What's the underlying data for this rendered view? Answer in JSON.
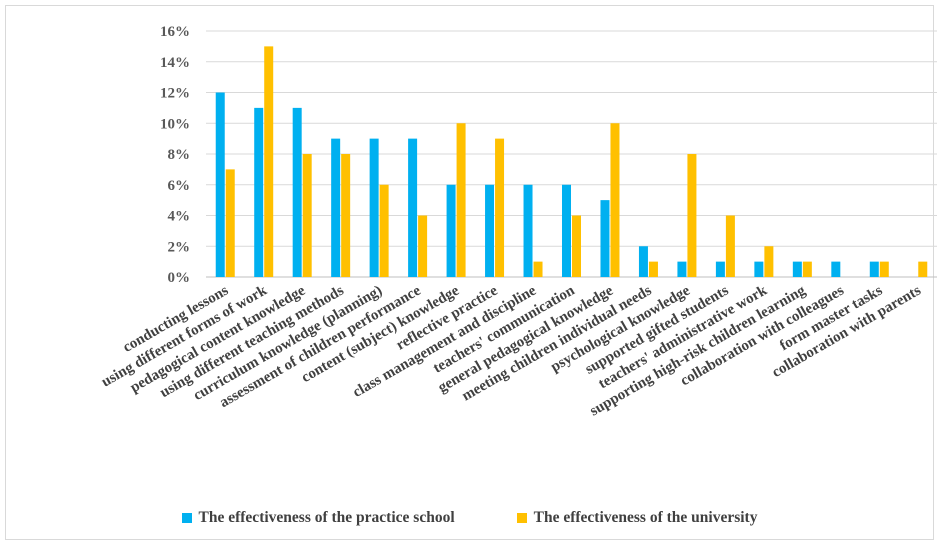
{
  "chart_data": {
    "type": "bar",
    "categories": [
      "conducting lessons",
      "using different forms of work",
      "pedagogical content knowledge",
      "using different teaching methods",
      "curriculum knowledge (planning)",
      "assessment of children performance",
      "content (subject) knowledge",
      "reflective practice",
      "class management and discipline",
      "teachers' communication",
      "general pedagogical knowledge",
      "meeting children individual needs",
      "psychological knowledge",
      "supported gifted students",
      "teachers' administrative work",
      "supporting high-risk children learning",
      "collaboration with colleagues",
      "form master tasks",
      "collaboration with parents"
    ],
    "series": [
      {
        "name": "The effectiveness of the practice school",
        "color": "#00b0f0",
        "values": [
          12,
          11,
          11,
          9,
          9,
          9,
          6,
          6,
          6,
          6,
          5,
          2,
          1,
          1,
          1,
          1,
          1,
          1,
          0
        ]
      },
      {
        "name": "The effectiveness of the university",
        "color": "#ffc000",
        "values": [
          7,
          15,
          8,
          8,
          6,
          4,
          10,
          9,
          1,
          4,
          10,
          1,
          8,
          4,
          2,
          1,
          0,
          1,
          1
        ]
      }
    ],
    "ylim": [
      0,
      16
    ],
    "yticks": [
      "0%",
      "2%",
      "4%",
      "6%",
      "8%",
      "10%",
      "12%",
      "14%",
      "16%"
    ],
    "grid": true,
    "legend_position": "bottom",
    "title": "",
    "xlabel": "",
    "ylabel": ""
  }
}
